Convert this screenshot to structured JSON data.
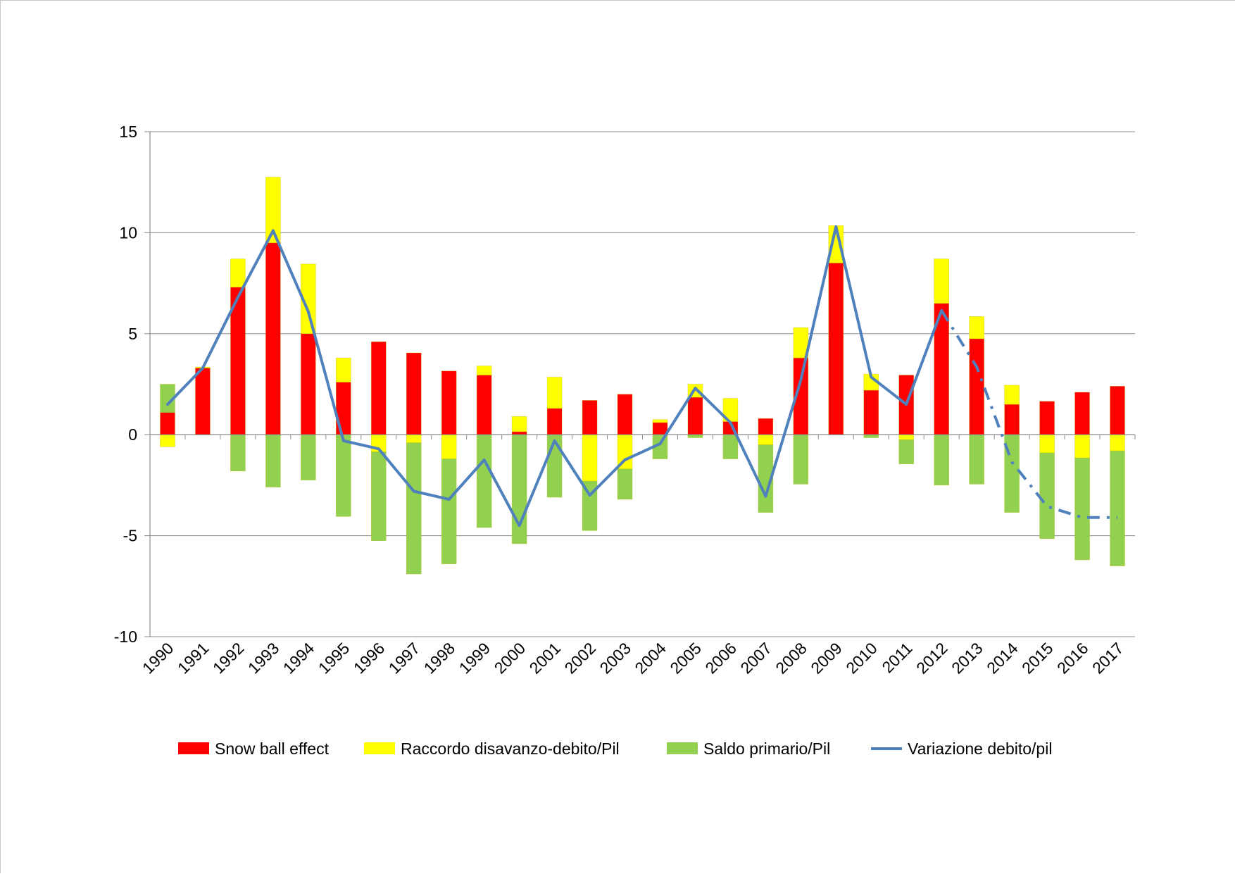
{
  "chart_data": {
    "type": "bar",
    "stacked": true,
    "categories": [
      "1990",
      "1991",
      "1992",
      "1993",
      "1994",
      "1995",
      "1996",
      "1997",
      "1998",
      "1999",
      "2000",
      "2001",
      "2002",
      "2003",
      "2004",
      "2005",
      "2006",
      "2007",
      "2008",
      "2009",
      "2010",
      "2011",
      "2012",
      "2013",
      "2014",
      "2015",
      "2016",
      "2017"
    ],
    "series": [
      {
        "name": "Snow ball effect",
        "type": "bar",
        "color": "#ff0000",
        "values": [
          1.1,
          3.3,
          7.3,
          9.5,
          5.0,
          2.6,
          4.6,
          4.05,
          3.15,
          2.95,
          0.15,
          1.3,
          1.7,
          2.0,
          0.6,
          1.85,
          0.65,
          0.8,
          3.8,
          8.5,
          2.2,
          2.95,
          6.5,
          4.75,
          1.5,
          1.65,
          2.1,
          2.4
        ]
      },
      {
        "name": "Raccordo disavanzo-debito/Pil",
        "type": "bar",
        "color": "#ffff00",
        "values": [
          -0.6,
          0.05,
          1.4,
          3.25,
          3.45,
          1.2,
          -0.85,
          -0.4,
          -1.2,
          0.45,
          0.75,
          1.55,
          -2.3,
          -1.7,
          0.15,
          0.65,
          1.15,
          -0.5,
          1.5,
          1.85,
          0.8,
          -0.25,
          2.2,
          1.1,
          0.95,
          -0.9,
          -1.15,
          -0.8
        ]
      },
      {
        "name": "Saldo primario/Pil",
        "type": "bar",
        "color": "#92d050",
        "values": [
          1.4,
          0,
          -1.8,
          -2.6,
          -2.25,
          -4.05,
          -4.4,
          -6.5,
          -5.2,
          -4.6,
          -5.4,
          -3.1,
          -2.45,
          -1.5,
          -1.2,
          -0.15,
          -1.2,
          -3.35,
          -2.45,
          0.0,
          -0.15,
          -1.2,
          -2.5,
          -2.45,
          -3.85,
          -4.25,
          -5.05,
          -5.7
        ]
      },
      {
        "name": "Variazione debito/pil",
        "type": "line",
        "color": "#4f81bd",
        "values": [
          1.5,
          3.3,
          6.8,
          10.1,
          6.1,
          -0.3,
          -0.7,
          -2.8,
          -3.2,
          -1.25,
          -4.5,
          -0.3,
          -3.0,
          -1.25,
          -0.45,
          2.3,
          0.6,
          -3.05,
          2.7,
          10.3,
          2.85,
          1.5,
          6.15,
          3.35,
          -1.35,
          -3.55,
          -4.1,
          -4.1
        ],
        "dashed_from": "2012"
      }
    ],
    "ylim": [
      -10,
      15
    ],
    "yticks": [
      "-10",
      "-5",
      "0",
      "5",
      "10",
      "15"
    ],
    "grid": true,
    "legend_position": "bottom"
  }
}
